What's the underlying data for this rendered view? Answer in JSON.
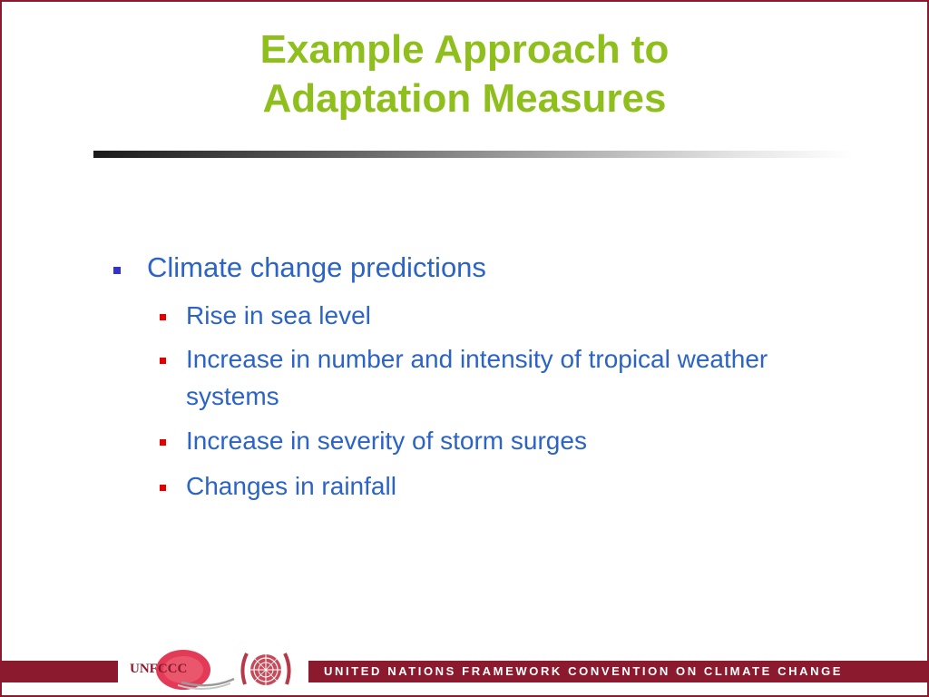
{
  "slide": {
    "title_lines": [
      "Example Approach to",
      "Adaptation Measures"
    ],
    "bullets": {
      "main": "Climate change predictions",
      "sub": [
        "Rise in sea level",
        "Increase in number and intensity of tropical weather systems",
        "Increase in severity of storm surges",
        "Changes in rainfall"
      ]
    },
    "footer": {
      "text": "UNITED NATIONS FRAMEWORK CONVENTION ON CLIMATE CHANGE",
      "logo_text": "UNFCCC",
      "emblem": "un-emblem"
    }
  },
  "colors": {
    "title": "#8fbf1c",
    "body_text": "#2b63c6",
    "level1_bullet": "#3333cc",
    "level2_bullet": "#e00000",
    "footer_band": "#8b1a2f"
  }
}
